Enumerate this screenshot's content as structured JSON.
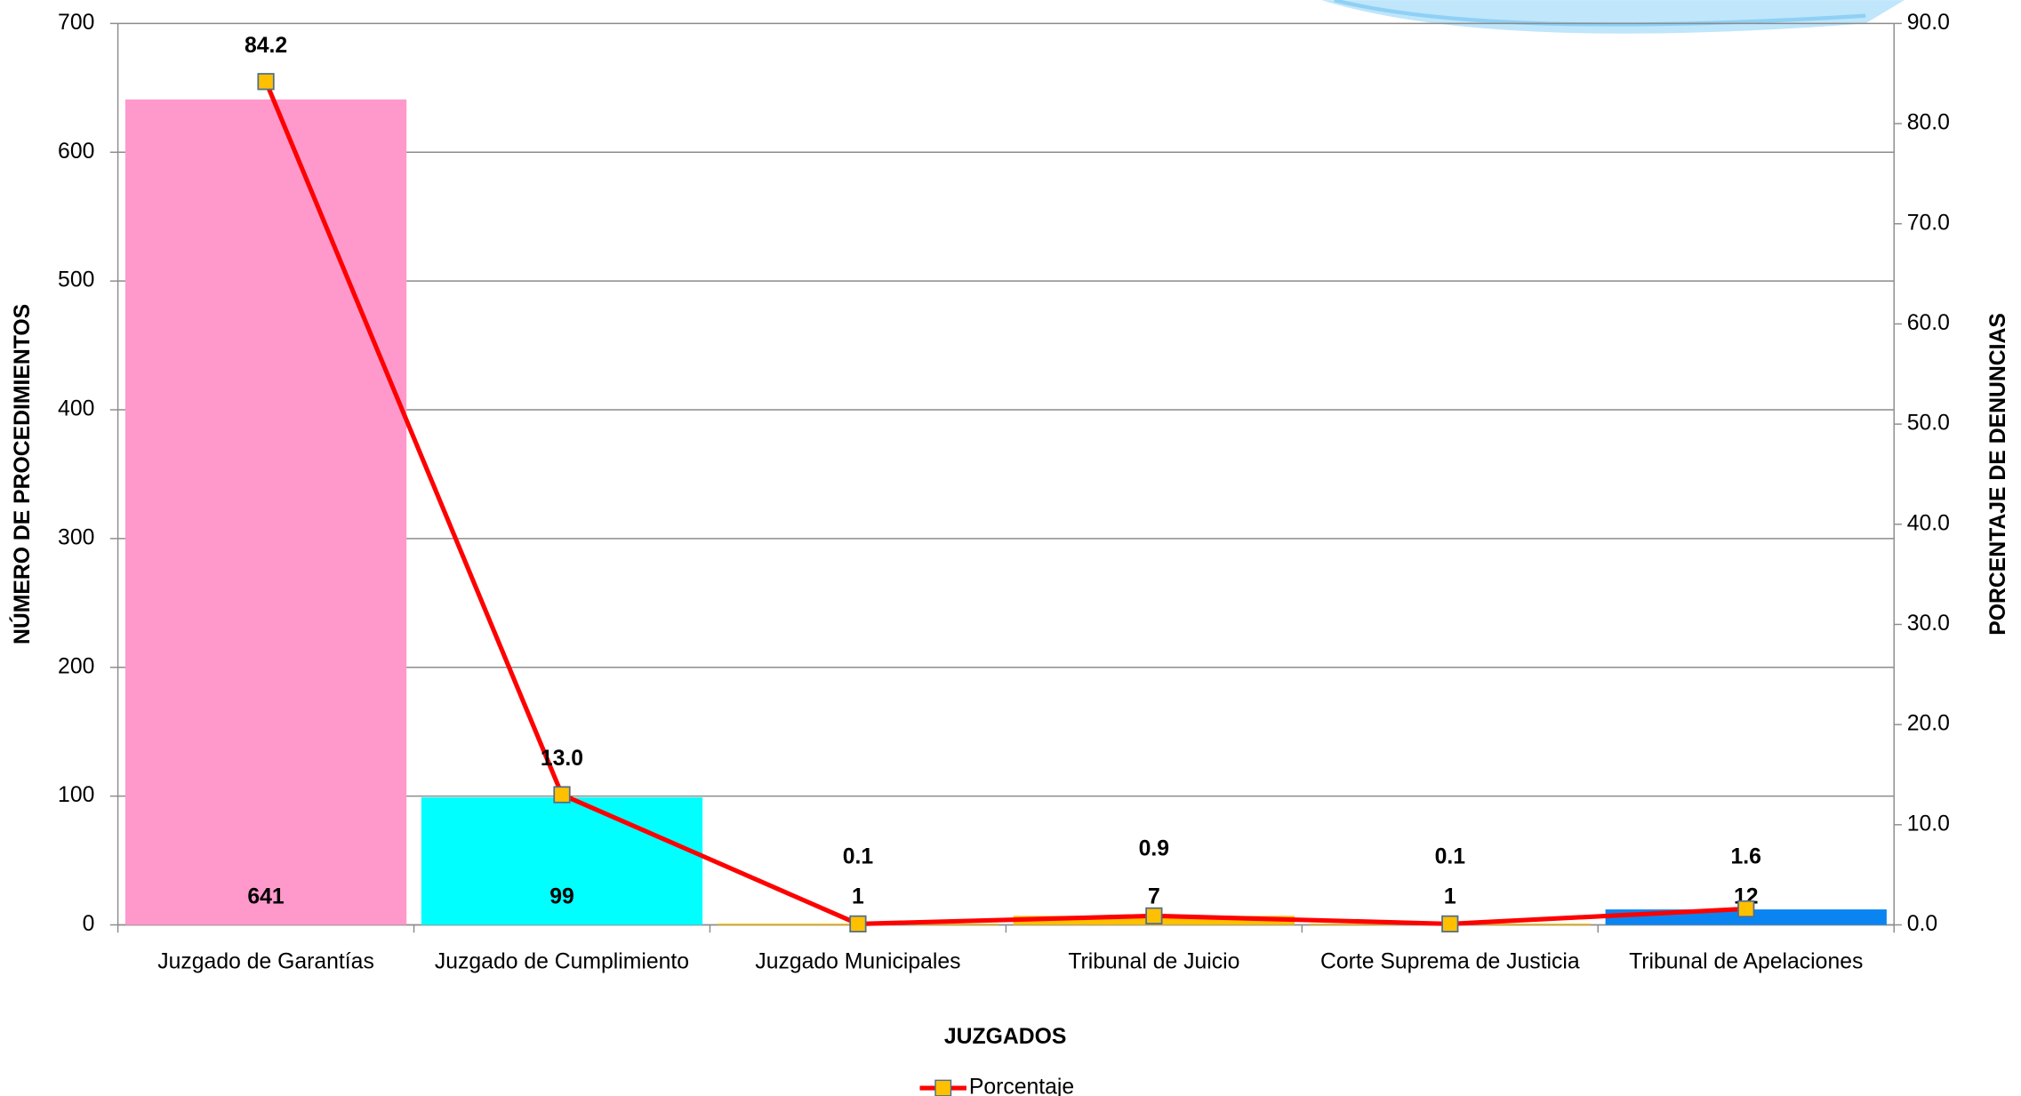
{
  "chart_data": {
    "type": "bar-line",
    "x_label": "JUZGADOS",
    "y_label": "NÚMERO DE PROCEDIMIENTOS",
    "y2_label": "PORCENTAJE DE DENUNCIAS",
    "categories": [
      "Juzgado de Garantías",
      "Juzgado de Cumplimiento",
      "Juzgado Municipales",
      "Tribunal de Juicio",
      "Corte Suprema de Justicia",
      "Tribunal de Apelaciones"
    ],
    "series": [
      {
        "type": "bar",
        "values": [
          641,
          99,
          1,
          7,
          1,
          12
        ],
        "colors": [
          "#ff99cc",
          "#00ffff",
          "#ffc000",
          "#ffc000",
          "#ffc000",
          "#0a84f0"
        ]
      },
      {
        "type": "line",
        "name": "Porcentaje",
        "axis": "y2",
        "color": "#ff0000",
        "marker_color": "#ffc000",
        "values": [
          84.2,
          13.0,
          0.1,
          0.9,
          0.1,
          1.6
        ],
        "value_labels": [
          "84.2",
          "13.0",
          "0.1",
          "0.9",
          "0.1",
          "1.6"
        ]
      }
    ],
    "ylim": [
      0,
      700
    ],
    "yticks": [
      0,
      100,
      200,
      300,
      400,
      500,
      600,
      700
    ],
    "y2lim": [
      0,
      90
    ],
    "y2ticks": [
      {
        "value": 0,
        "label": "0.0"
      },
      {
        "value": 10,
        "label": "10.0"
      },
      {
        "value": 20,
        "label": "20.0"
      },
      {
        "value": 30,
        "label": "30.0"
      },
      {
        "value": 40,
        "label": "40.0"
      },
      {
        "value": 50,
        "label": "50.0"
      },
      {
        "value": 60,
        "label": "60.0"
      },
      {
        "value": 70,
        "label": "70.0"
      },
      {
        "value": 80,
        "label": "80.0"
      },
      {
        "value": 90,
        "label": "90.0"
      }
    ],
    "grid": true,
    "legend": "bottom"
  }
}
